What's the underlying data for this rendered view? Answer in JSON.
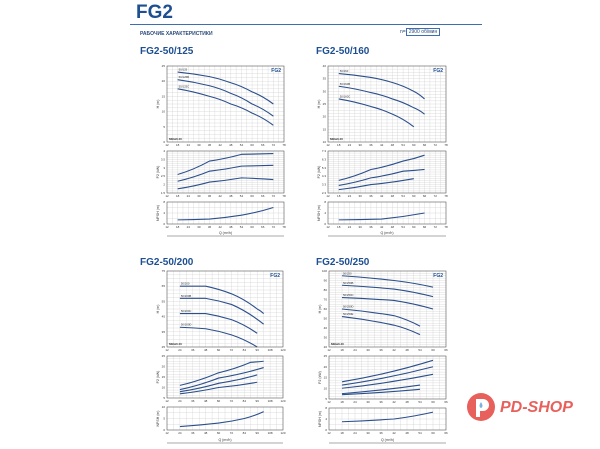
{
  "header": {
    "title": "FG2",
    "subtitle": "РАБОЧИЕ ХАРАКТЕРИСТИКИ",
    "speed_prefix": "n=",
    "speed": "2900 об/мин"
  },
  "logo": {
    "text": "PD-SHOP",
    "color": "#e8605c"
  },
  "colors": {
    "curve": "#2b4f8c",
    "grid": "#c8c8c8",
    "accent": "#1d4f91"
  },
  "chart_data": [
    {
      "type": "line",
      "title": "FG2-50/125",
      "brand": "FG2",
      "mei": "MEI≥0.40",
      "xlabel": "Q (m³/h)",
      "x_ticks": [
        12,
        18,
        24,
        30,
        36,
        42,
        48,
        54,
        60,
        66,
        72,
        78
      ],
      "head": {
        "ylabel": "H (m)",
        "ylim": [
          0,
          25
        ],
        "yticks": [
          0,
          5,
          10,
          15,
          20,
          25
        ],
        "series": [
          {
            "name": "50/125",
            "points": [
              [
                18,
                23
              ],
              [
                36,
                21.5
              ],
              [
                48,
                19.5
              ],
              [
                60,
                16.5
              ],
              [
                72,
                12.5
              ]
            ]
          },
          {
            "name": "50/125B",
            "points": [
              [
                18,
                20.5
              ],
              [
                36,
                18.5
              ],
              [
                48,
                16
              ],
              [
                60,
                12.5
              ],
              [
                72,
                8.5
              ]
            ]
          },
          {
            "name": "50/125C",
            "points": [
              [
                18,
                17.5
              ],
              [
                36,
                15
              ],
              [
                48,
                12.5
              ],
              [
                60,
                9.5
              ],
              [
                72,
                5.5
              ]
            ]
          }
        ]
      },
      "power": {
        "ylabel": "P2 (kW)",
        "ylim": [
          1.5,
          4
        ],
        "yticks": [
          1.5,
          2,
          2.5,
          3,
          3.5,
          4
        ],
        "series": [
          {
            "points": [
              [
                18,
                2.6
              ],
              [
                36,
                3.4
              ],
              [
                54,
                3.8
              ],
              [
                72,
                3.85
              ]
            ]
          },
          {
            "points": [
              [
                18,
                2.2
              ],
              [
                36,
                2.8
              ],
              [
                54,
                3.1
              ],
              [
                72,
                3.15
              ]
            ]
          },
          {
            "points": [
              [
                18,
                1.75
              ],
              [
                36,
                2.15
              ],
              [
                54,
                2.4
              ],
              [
                72,
                2.3
              ]
            ]
          }
        ]
      },
      "npsh": {
        "ylabel": "NPSH (m)",
        "ylim": [
          0,
          8
        ],
        "yticks": [
          0,
          4,
          8
        ],
        "series": [
          {
            "points": [
              [
                18,
                1.5
              ],
              [
                36,
                1.8
              ],
              [
                54,
                3.2
              ],
              [
                72,
                6
              ]
            ]
          }
        ]
      }
    },
    {
      "type": "line",
      "title": "FG2-50/160",
      "brand": "FG2",
      "mei": "MEI≥0.40",
      "xlabel": "Q (m³/h)",
      "x_ticks": [
        12,
        18,
        24,
        30,
        36,
        42,
        48,
        54,
        60,
        66,
        72,
        78
      ],
      "head": {
        "ylabel": "H (m)",
        "ylim": [
          10,
          40
        ],
        "yticks": [
          10,
          15,
          20,
          25,
          30,
          35,
          40
        ],
        "series": [
          {
            "name": "50/160",
            "points": [
              [
                18,
                37
              ],
              [
                36,
                35.5
              ],
              [
                48,
                33.5
              ],
              [
                60,
                30
              ],
              [
                66,
                27
              ]
            ]
          },
          {
            "name": "50/160B",
            "points": [
              [
                18,
                32
              ],
              [
                36,
                29.5
              ],
              [
                48,
                27
              ],
              [
                60,
                23.5
              ],
              [
                66,
                21
              ]
            ]
          },
          {
            "name": "50/160C",
            "points": [
              [
                18,
                27
              ],
              [
                36,
                24
              ],
              [
                48,
                21
              ],
              [
                60,
                16
              ]
            ]
          }
        ]
      },
      "power": {
        "ylabel": "P2 (kW)",
        "ylim": [
          2.3,
          7.3
        ],
        "yticks": [
          2.3,
          3.3,
          4.3,
          5.3,
          6.3,
          7.3
        ],
        "series": [
          {
            "points": [
              [
                18,
                3.8
              ],
              [
                36,
                5.1
              ],
              [
                54,
                6.1
              ],
              [
                66,
                6.8
              ]
            ]
          },
          {
            "points": [
              [
                18,
                3.2
              ],
              [
                36,
                4.1
              ],
              [
                54,
                4.9
              ],
              [
                66,
                5.1
              ]
            ]
          },
          {
            "points": [
              [
                18,
                2.7
              ],
              [
                36,
                3.3
              ],
              [
                60,
                4.0
              ]
            ]
          }
        ]
      },
      "npsh": {
        "ylabel": "NPSH (m)",
        "ylim": [
          0,
          8
        ],
        "yticks": [
          0,
          4,
          8
        ],
        "series": [
          {
            "points": [
              [
                18,
                1.5
              ],
              [
                42,
                1.8
              ],
              [
                66,
                4
              ]
            ]
          }
        ]
      }
    },
    {
      "type": "line",
      "title": "FG2-50/200",
      "brand": "FG2",
      "mei": "MEI≥0.40",
      "xlabel": "Q (m³/h)",
      "x_ticks": [
        12,
        24,
        36,
        48,
        60,
        72,
        84,
        96,
        108,
        120
      ],
      "head": {
        "ylabel": "H (m)",
        "ylim": [
          25,
          75
        ],
        "yticks": [
          25,
          35,
          45,
          55,
          65,
          75
        ],
        "series": [
          {
            "name": "50/200",
            "points": [
              [
                24,
                65
              ],
              [
                48,
                65
              ],
              [
                72,
                60
              ],
              [
                96,
                50
              ],
              [
                102,
                47
              ]
            ]
          },
          {
            "name": "50/200B",
            "points": [
              [
                24,
                57
              ],
              [
                48,
                57
              ],
              [
                72,
                53
              ],
              [
                102,
                40
              ]
            ]
          },
          {
            "name": "50/200C",
            "points": [
              [
                24,
                47
              ],
              [
                48,
                47
              ],
              [
                72,
                43
              ],
              [
                96,
                34
              ]
            ]
          },
          {
            "name": "50/200D",
            "points": [
              [
                24,
                38
              ],
              [
                48,
                37
              ],
              [
                72,
                33
              ],
              [
                96,
                25
              ]
            ]
          }
        ]
      },
      "power": {
        "ylabel": "P2 (kW)",
        "ylim": [
          5,
          25
        ],
        "yticks": [
          5,
          10,
          15,
          20,
          25
        ],
        "series": [
          {
            "points": [
              [
                24,
                11
              ],
              [
                60,
                17
              ],
              [
                90,
                22
              ],
              [
                102,
                22.5
              ]
            ]
          },
          {
            "points": [
              [
                24,
                9
              ],
              [
                60,
                14.5
              ],
              [
                102,
                19.5
              ]
            ]
          },
          {
            "points": [
              [
                24,
                8
              ],
              [
                60,
                12
              ],
              [
                96,
                16
              ]
            ]
          },
          {
            "points": [
              [
                24,
                7
              ],
              [
                60,
                10
              ],
              [
                96,
                12.5
              ]
            ]
          }
        ]
      },
      "npsh": {
        "ylabel": "NPSH (m)",
        "ylim": [
          0,
          10
        ],
        "yticks": [
          0,
          5,
          10
        ],
        "series": [
          {
            "points": [
              [
                24,
                1.5
              ],
              [
                60,
                3
              ],
              [
                84,
                5
              ],
              [
                102,
                8
              ]
            ]
          }
        ]
      }
    },
    {
      "type": "line",
      "title": "FG2-50/250",
      "brand": "FG2",
      "mei": "MEI≥0.40",
      "xlabel": "Q (m³/h)",
      "x_ticks": [
        12,
        18,
        24,
        30,
        36,
        42,
        48,
        54,
        60,
        66
      ],
      "head": {
        "ylabel": "H (m)",
        "ylim": [
          20,
          100
        ],
        "yticks": [
          20,
          30,
          40,
          50,
          60,
          70,
          80,
          90,
          100
        ],
        "series": [
          {
            "name": "50/250",
            "points": [
              [
                18,
                95
              ],
              [
                42,
                90
              ],
              [
                60,
                83
              ]
            ]
          },
          {
            "name": "50/250B",
            "points": [
              [
                18,
                85
              ],
              [
                42,
                81
              ],
              [
                60,
                73
              ]
            ]
          },
          {
            "name": "50/250C",
            "points": [
              [
                18,
                72
              ],
              [
                42,
                69
              ],
              [
                60,
                60
              ]
            ]
          },
          {
            "name": "50/250D",
            "points": [
              [
                18,
                60
              ],
              [
                42,
                53
              ],
              [
                54,
                42
              ]
            ]
          },
          {
            "name": "50/250E",
            "points": [
              [
                18,
                52
              ],
              [
                42,
                43
              ],
              [
                54,
                33
              ]
            ]
          }
        ]
      },
      "power": {
        "ylabel": "P2 (kW)",
        "ylim": [
          5,
          25
        ],
        "yticks": [
          5,
          10,
          15,
          20,
          25
        ],
        "series": [
          {
            "points": [
              [
                18,
                13
              ],
              [
                60,
                23
              ]
            ]
          },
          {
            "points": [
              [
                18,
                11.5
              ],
              [
                60,
                20
              ]
            ]
          },
          {
            "points": [
              [
                18,
                10
              ],
              [
                60,
                16.5
              ]
            ]
          },
          {
            "points": [
              [
                18,
                7.5
              ],
              [
                54,
                11.5
              ]
            ]
          },
          {
            "points": [
              [
                18,
                7
              ],
              [
                54,
                9.5
              ]
            ]
          }
        ]
      },
      "npsh": {
        "ylabel": "NPSH (m)",
        "ylim": [
          0,
          8
        ],
        "yticks": [
          0,
          4,
          8
        ],
        "series": [
          {
            "points": [
              [
                18,
                3
              ],
              [
                42,
                4
              ],
              [
                60,
                6.5
              ]
            ]
          }
        ]
      }
    }
  ]
}
